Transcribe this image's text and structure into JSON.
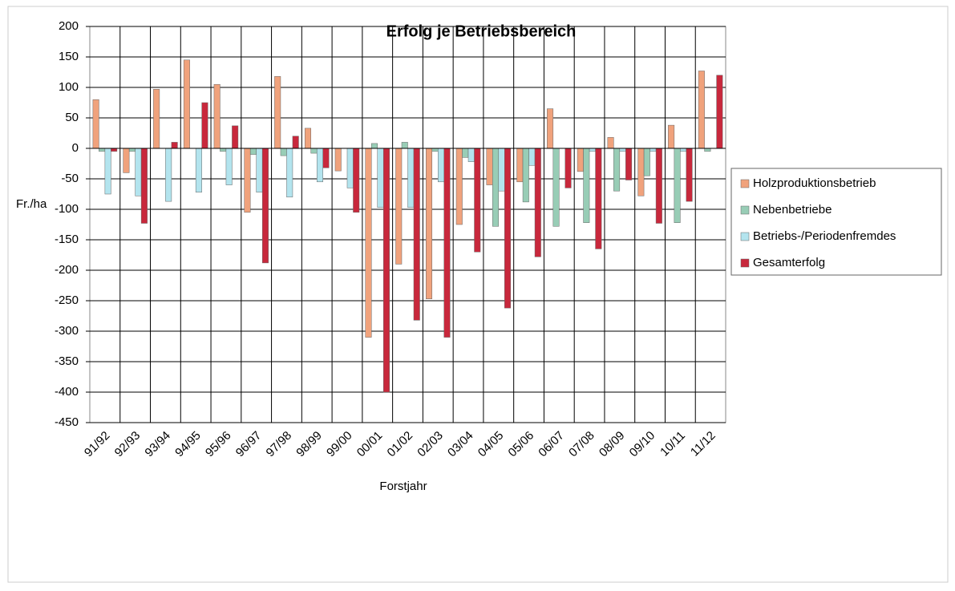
{
  "chart_data": {
    "type": "bar",
    "title": "Erfolg je Betriebsbereich",
    "x_label": "Forstjahr",
    "y_label": "Fr./ha",
    "categories": [
      "91/92",
      "92/93",
      "93/94",
      "94/95",
      "95/96",
      "96/97",
      "97/98",
      "98/99",
      "99/00",
      "00/01",
      "01/02",
      "02/03",
      "03/04",
      "04/05",
      "05/06",
      "06/07",
      "07/08",
      "08/09",
      "09/10",
      "10/11",
      "11/12"
    ],
    "series": [
      {
        "name": "Holzproduktionsbetrieb",
        "color": "#f0a27c",
        "values": [
          80,
          -40,
          97,
          145,
          105,
          -105,
          118,
          33,
          -37,
          -310,
          -190,
          -247,
          -125,
          -60,
          -55,
          65,
          -38,
          18,
          -78,
          38,
          127
        ]
      },
      {
        "name": "Nebenbetriebe",
        "color": "#98cdb6",
        "values": [
          -5,
          -5,
          0,
          0,
          -5,
          -10,
          -12,
          -8,
          0,
          8,
          10,
          -5,
          -15,
          -128,
          -88,
          -128,
          -122,
          -70,
          -45,
          -122,
          -5
        ]
      },
      {
        "name": "Betriebs-/Periodenfremdes",
        "color": "#b3e4ee",
        "values": [
          -75,
          -78,
          -87,
          -72,
          -60,
          -72,
          -80,
          -55,
          -65,
          -97,
          -97,
          -55,
          -22,
          -70,
          -28,
          0,
          -5,
          -5,
          -5,
          -5,
          0
        ]
      },
      {
        "name": "Gesamterfolg",
        "color": "#c8283c",
        "values": [
          -5,
          -123,
          10,
          75,
          37,
          -188,
          20,
          -32,
          -105,
          -400,
          -282,
          -310,
          -170,
          -262,
          -178,
          -65,
          -165,
          -52,
          -123,
          -87,
          120
        ]
      }
    ],
    "ylim": [
      -450,
      200
    ],
    "yticks": [
      -450,
      -400,
      -350,
      -300,
      -250,
      -200,
      -150,
      -100,
      -50,
      0,
      50,
      100,
      150,
      200
    ],
    "grid": true,
    "legend": "right"
  }
}
